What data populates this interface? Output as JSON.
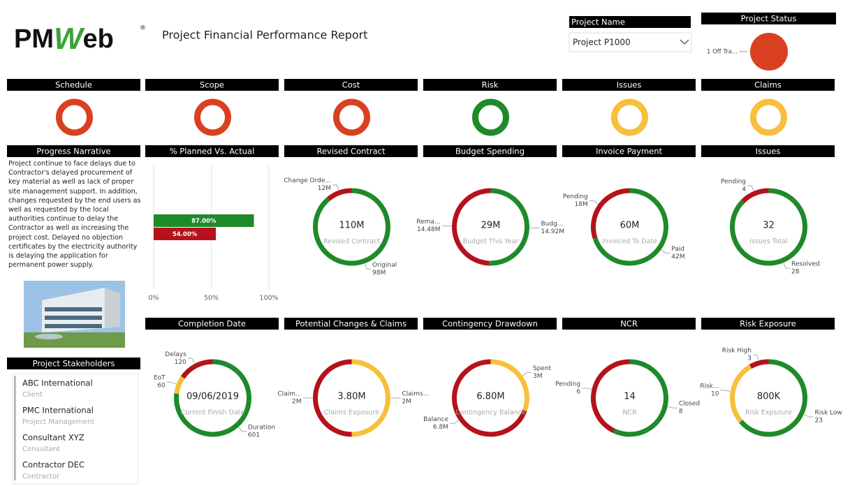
{
  "header": {
    "logo": [
      "PM",
      "W",
      "eb"
    ],
    "logo_mark": "®",
    "title": "Project Financial Performance Report"
  },
  "project_name": {
    "label": "Project Name",
    "selected": "Project P1000"
  },
  "project_status": {
    "label": "Project Status",
    "legend": "1 Off Tra...",
    "color": "#d9401f"
  },
  "status_rings": [
    {
      "label": "Schedule",
      "color": "#d9401f"
    },
    {
      "label": "Scope",
      "color": "#d9401f"
    },
    {
      "label": "Cost",
      "color": "#d9401f"
    },
    {
      "label": "Risk",
      "color": "#1e8a2a"
    },
    {
      "label": "Issues",
      "color": "#f7bf3c"
    },
    {
      "label": "Claims",
      "color": "#f7bf3c"
    }
  ],
  "narrative": {
    "title": "Progress Narrative",
    "text": "Project continue to face delays due to Contractor's delayed procurement of key material as well as lack of proper site management support. In addition, changes requested by the end users as well as requested by the local authorities continue to delay the Contractor as well as increasing the project cost. Delayed no objection certificates by the electricity authority is delaying the application for permanent power supply."
  },
  "planned_actual": {
    "type": "bar",
    "title": "% Planned Vs. Actual",
    "values": [
      87,
      54
    ],
    "value_labels": [
      "87.00%",
      "54.00%"
    ],
    "colors": [
      "#1e8a2a",
      "#b5121b"
    ],
    "xlim": [
      0,
      100
    ],
    "xticks": [
      {
        "value": 0,
        "label": "0%"
      },
      {
        "value": 50,
        "label": "50%"
      },
      {
        "value": 100,
        "label": "100%"
      }
    ],
    "grid": true
  },
  "donuts": [
    {
      "type": "pie",
      "title": "Revised Contract",
      "center_value": "110M",
      "center_label": "Revised Contract",
      "slices": [
        {
          "label": "Original",
          "value": 98,
          "value_label": "98M",
          "color": "#1e8a2a"
        },
        {
          "label": "Change Orde...",
          "value": 12,
          "value_label": "12M",
          "color": "#b5121b"
        }
      ]
    },
    {
      "type": "pie",
      "title": "Budget Spending",
      "center_value": "29M",
      "center_label": "Budget This Year",
      "slices": [
        {
          "label": "Budg...",
          "value": 14.92,
          "value_label": "14.92M",
          "color": "#1e8a2a"
        },
        {
          "label": "Rema...",
          "value": 14.48,
          "value_label": "14.48M",
          "color": "#b5121b"
        }
      ]
    },
    {
      "type": "pie",
      "title": "Invoice Payment",
      "center_value": "60M",
      "center_label": "Invoiced To Date",
      "slices": [
        {
          "label": "Paid",
          "value": 42,
          "value_label": "42M",
          "color": "#1e8a2a"
        },
        {
          "label": "Pending",
          "value": 18,
          "value_label": "18M",
          "color": "#b5121b"
        }
      ]
    },
    {
      "type": "pie",
      "title": "Issues",
      "center_value": "32",
      "center_label": "Issues Total",
      "slices": [
        {
          "label": "Resolved",
          "value": 28,
          "value_label": "28",
          "color": "#1e8a2a"
        },
        {
          "label": "Pending",
          "value": 4,
          "value_label": "4",
          "color": "#b5121b"
        }
      ]
    },
    {
      "type": "pie",
      "title": "Completion Date",
      "center_value": "09/06/2019",
      "center_label": "Current Finish Date",
      "slices": [
        {
          "label": "Duration",
          "value": 601,
          "value_label": "601",
          "color": "#1e8a2a"
        },
        {
          "label": "EoT",
          "value": 60,
          "value_label": "60",
          "color": "#f7bf3c"
        },
        {
          "label": "Delays",
          "value": 120,
          "value_label": "120",
          "color": "#b5121b"
        }
      ]
    },
    {
      "type": "pie",
      "title": "Potential Changes & Claims",
      "center_value": "3.80M",
      "center_label": "Claims Exposure",
      "slices": [
        {
          "label": "Claims...",
          "value": 2,
          "value_label": "2M",
          "color": "#f7bf3c"
        },
        {
          "label": "Claim...",
          "value": 2,
          "value_label": "2M",
          "color": "#b5121b"
        }
      ]
    },
    {
      "type": "pie",
      "title": "Contingency Drawdown",
      "center_value": "6.80M",
      "center_label": "Contingency Balance",
      "slices": [
        {
          "label": "Spent",
          "value": 3,
          "value_label": "3M",
          "color": "#f7bf3c"
        },
        {
          "label": "Balance",
          "value": 6.8,
          "value_label": "6.8M",
          "color": "#b5121b"
        }
      ]
    },
    {
      "type": "pie",
      "title": "NCR",
      "center_value": "14",
      "center_label": "NCR",
      "slices": [
        {
          "label": "Closed",
          "value": 8,
          "value_label": "8",
          "color": "#1e8a2a"
        },
        {
          "label": "Pending",
          "value": 6,
          "value_label": "6",
          "color": "#b5121b"
        }
      ]
    },
    {
      "type": "pie",
      "title": "Risk Exposure",
      "center_value": "800K",
      "center_label": "Risk Expsoure",
      "slices": [
        {
          "label": "Risk Low",
          "value": 23,
          "value_label": "23",
          "color": "#1e8a2a"
        },
        {
          "label": "Risk...",
          "value": 10,
          "value_label": "10",
          "color": "#f7bf3c"
        },
        {
          "label": "Risk High",
          "value": 3,
          "value_label": "3",
          "color": "#b5121b"
        }
      ]
    }
  ],
  "stakeholders": {
    "title": "Project Stakeholders",
    "items": [
      {
        "name": "ABC International",
        "role": "Client"
      },
      {
        "name": "PMC International",
        "role": "Project Management"
      },
      {
        "name": "Consultant XYZ",
        "role": "Consultant"
      },
      {
        "name": "Contractor DEC",
        "role": "Contractor"
      }
    ]
  }
}
